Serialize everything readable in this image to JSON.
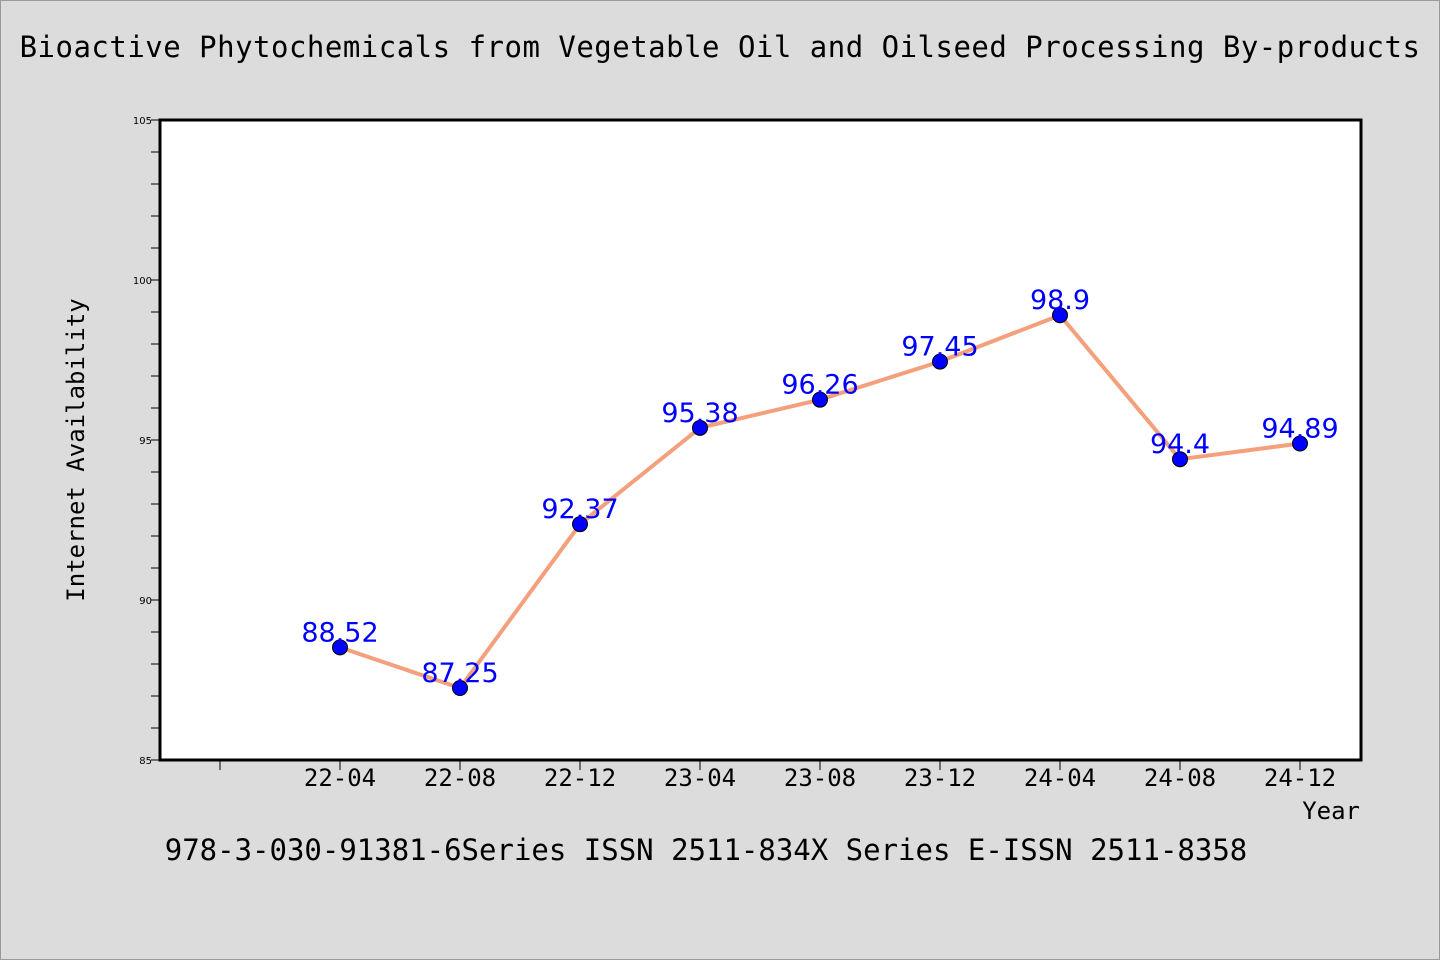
{
  "title": "Bioactive Phytochemicals from Vegetable Oil and Oilseed Processing By-products",
  "footer": "978-3-030-91381-6Series ISSN 2511-834X Series E-ISSN 2511-8358",
  "colors": {
    "background": "#dcdcdc",
    "plot_background": "#ffffff",
    "line": "#f4a07c",
    "marker": "#0000ff",
    "data_label": "#0000ff"
  },
  "chart_data": {
    "type": "line",
    "title": "Bioactive Phytochemicals from Vegetable Oil and Oilseed Processing By-products",
    "xlabel": "Year",
    "ylabel": "Internet Availability",
    "categories": [
      "22-04",
      "22-08",
      "22-12",
      "23-04",
      "23-08",
      "23-12",
      "24-04",
      "24-08",
      "24-12"
    ],
    "series": [
      {
        "values": [
          88.52,
          87.25,
          92.37,
          95.38,
          96.26,
          97.45,
          98.9,
          94.4,
          94.89
        ]
      }
    ],
    "data_labels": [
      "88.52",
      "87.25",
      "92.37",
      "95.38",
      "96.26",
      "97.45",
      "98.9",
      "94.4",
      "94.89"
    ],
    "ylim": [
      85,
      105
    ],
    "yticks": [
      85,
      90,
      95,
      100,
      105
    ],
    "grid": false,
    "legend": "none"
  }
}
